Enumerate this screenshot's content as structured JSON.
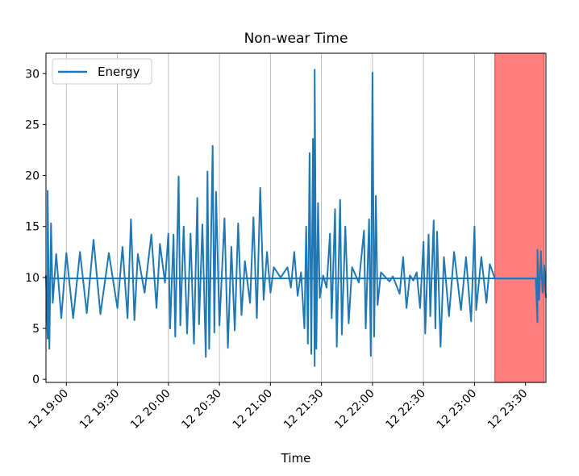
{
  "colors": {
    "series": "#1f77b4",
    "nonwear_fill": "#ff7f7f",
    "nonwear_edge": "#e24a4a",
    "grid": "#b0b0b0"
  },
  "chart_data": {
    "type": "line",
    "title": "Non-wear Time",
    "xlabel": "Time",
    "ylabel": "",
    "x_axis_kind": "datetime",
    "xlim": [
      "12 18:48",
      "12 23:42"
    ],
    "ylim": [
      -0.3,
      32
    ],
    "grid": "vertical-only",
    "legend": {
      "placement": "top-left",
      "entries": [
        "Energy"
      ]
    },
    "x_ticks": [
      "12 19:00",
      "12 19:30",
      "12 20:00",
      "12 20:30",
      "12 21:00",
      "12 21:30",
      "12 22:00",
      "12 22:30",
      "12 23:00",
      "12 23:30"
    ],
    "y_ticks": [
      0,
      5,
      10,
      15,
      20,
      25,
      30
    ],
    "nonwear_periods": [
      {
        "start": "12 23:12",
        "end": "12 23:41"
      }
    ],
    "series": [
      {
        "name": "Energy",
        "baseline": 9.9,
        "points": [
          [
            "12 18:48",
            10.2
          ],
          [
            "12 18:49",
            4.0
          ],
          [
            "12 18:49",
            18.5
          ],
          [
            "12 18:50",
            3.0
          ],
          [
            "12 18:51",
            15.3
          ],
          [
            "12 18:52",
            7.5
          ],
          [
            "12 18:54",
            12.3
          ],
          [
            "12 18:57",
            6.0
          ],
          [
            "12 19:00",
            12.4
          ],
          [
            "12 19:04",
            6.0
          ],
          [
            "12 19:08",
            12.5
          ],
          [
            "12 19:12",
            6.5
          ],
          [
            "12 19:16",
            13.7
          ],
          [
            "12 19:20",
            6.4
          ],
          [
            "12 19:25",
            12.4
          ],
          [
            "12 19:30",
            7.0
          ],
          [
            "12 19:33",
            13.0
          ],
          [
            "12 19:36",
            6.0
          ],
          [
            "12 19:38",
            15.7
          ],
          [
            "12 19:40",
            5.8
          ],
          [
            "12 19:42",
            12.3
          ],
          [
            "12 19:46",
            8.5
          ],
          [
            "12 19:50",
            14.2
          ],
          [
            "12 19:53",
            7.0
          ],
          [
            "12 19:55",
            13.3
          ],
          [
            "12 19:58",
            9.5
          ],
          [
            "12 20:00",
            14.3
          ],
          [
            "12 20:01",
            5.0
          ],
          [
            "12 20:03",
            14.2
          ],
          [
            "12 20:04",
            4.2
          ],
          [
            "12 20:06",
            19.9
          ],
          [
            "12 20:07",
            5.3
          ],
          [
            "12 20:09",
            15.0
          ],
          [
            "12 20:11",
            4.5
          ],
          [
            "12 20:13",
            14.3
          ],
          [
            "12 20:15",
            3.5
          ],
          [
            "12 20:17",
            17.8
          ],
          [
            "12 20:18",
            5.4
          ],
          [
            "12 20:20",
            15.2
          ],
          [
            "12 20:22",
            2.2
          ],
          [
            "12 20:23",
            20.4
          ],
          [
            "12 20:24",
            3.0
          ],
          [
            "12 20:26",
            22.9
          ],
          [
            "12 20:27",
            4.6
          ],
          [
            "12 20:28",
            18.4
          ],
          [
            "12 20:30",
            5.3
          ],
          [
            "12 20:33",
            15.8
          ],
          [
            "12 20:35",
            3.1
          ],
          [
            "12 20:37",
            13.0
          ],
          [
            "12 20:39",
            4.8
          ],
          [
            "12 20:41",
            15.3
          ],
          [
            "12 20:43",
            6.3
          ],
          [
            "12 20:45",
            11.6
          ],
          [
            "12 20:48",
            7.5
          ],
          [
            "12 20:50",
            15.9
          ],
          [
            "12 20:52",
            6.0
          ],
          [
            "12 20:54",
            18.8
          ],
          [
            "12 20:56",
            7.8
          ],
          [
            "12 20:58",
            12.5
          ],
          [
            "12 21:00",
            8.5
          ],
          [
            "12 21:02",
            11.0
          ],
          [
            "12 21:06",
            10.0
          ],
          [
            "12 21:10",
            11.0
          ],
          [
            "12 21:12",
            9.0
          ],
          [
            "12 21:14",
            12.5
          ],
          [
            "12 21:16",
            8.2
          ],
          [
            "12 21:18",
            10.5
          ],
          [
            "12 21:20",
            5.0
          ],
          [
            "12 21:21",
            15.0
          ],
          [
            "12 21:22",
            3.5
          ],
          [
            "12 21:23",
            22.2
          ],
          [
            "12 21:24",
            2.5
          ],
          [
            "12 21:25",
            23.6
          ],
          [
            "12 21:26",
            1.3
          ],
          [
            "12 21:26",
            30.4
          ],
          [
            "12 21:27",
            3.0
          ],
          [
            "12 21:28",
            17.3
          ],
          [
            "12 21:29",
            8.0
          ],
          [
            "12 21:31",
            10.2
          ],
          [
            "12 21:33",
            9.0
          ],
          [
            "12 21:35",
            14.3
          ],
          [
            "12 21:36",
            6.0
          ],
          [
            "12 21:38",
            16.7
          ],
          [
            "12 21:39",
            3.2
          ],
          [
            "12 21:41",
            17.6
          ],
          [
            "12 21:42",
            4.4
          ],
          [
            "12 21:44",
            15.0
          ],
          [
            "12 21:46",
            5.5
          ],
          [
            "12 21:48",
            11.0
          ],
          [
            "12 21:52",
            9.5
          ],
          [
            "12 21:55",
            14.6
          ],
          [
            "12 21:56",
            5.0
          ],
          [
            "12 21:58",
            15.7
          ],
          [
            "12 21:59",
            2.3
          ],
          [
            "12 22:00",
            30.1
          ],
          [
            "12 22:01",
            4.2
          ],
          [
            "12 22:02",
            18.0
          ],
          [
            "12 22:03",
            7.3
          ],
          [
            "12 22:05",
            10.5
          ],
          [
            "12 22:10",
            9.6
          ],
          [
            "12 22:12",
            10.1
          ],
          [
            "12 22:16",
            8.4
          ],
          [
            "12 22:18",
            12.0
          ],
          [
            "12 22:20",
            7.0
          ],
          [
            "12 22:22",
            10.2
          ],
          [
            "12 22:24",
            9.7
          ],
          [
            "12 22:26",
            10.5
          ],
          [
            "12 22:28",
            7.0
          ],
          [
            "12 22:30",
            13.5
          ],
          [
            "12 22:31",
            4.5
          ],
          [
            "12 22:33",
            14.2
          ],
          [
            "12 22:34",
            6.2
          ],
          [
            "12 22:36",
            15.6
          ],
          [
            "12 22:37",
            5.0
          ],
          [
            "12 22:38",
            14.5
          ],
          [
            "12 22:40",
            3.2
          ],
          [
            "12 22:42",
            12.0
          ],
          [
            "12 22:45",
            6.2
          ],
          [
            "12 22:48",
            12.5
          ],
          [
            "12 22:52",
            6.8
          ],
          [
            "12 22:55",
            12.0
          ],
          [
            "12 22:58",
            5.7
          ],
          [
            "12 23:00",
            15.0
          ],
          [
            "12 23:01",
            6.8
          ],
          [
            "12 23:04",
            12.0
          ],
          [
            "12 23:07",
            7.5
          ],
          [
            "12 23:09",
            11.3
          ],
          [
            "12 23:12",
            9.9
          ],
          [
            "12 23:36",
            9.9
          ],
          [
            "12 23:37",
            5.6
          ],
          [
            "12 23:37",
            12.7
          ],
          [
            "12 23:38",
            7.8
          ],
          [
            "12 23:39",
            12.6
          ],
          [
            "12 23:40",
            8.5
          ],
          [
            "12 23:41",
            11.2
          ],
          [
            "12 23:42",
            8.0
          ]
        ]
      }
    ]
  }
}
